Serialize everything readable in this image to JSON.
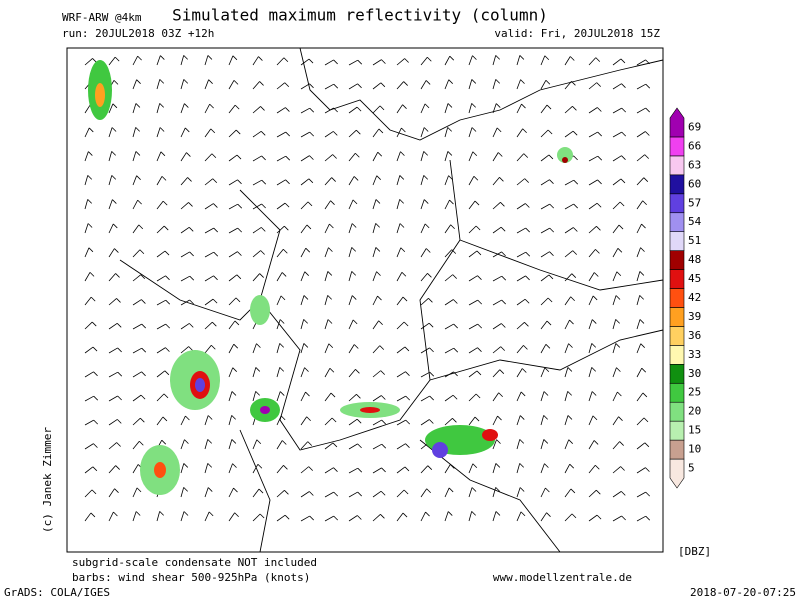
{
  "header": {
    "model": "WRF-ARW @4km",
    "title": "Simulated maximum reflectivity (column)",
    "run": "run: 20JUL2018 03Z +12h",
    "valid": "valid: Fri, 20JUL2018 15Z"
  },
  "copyright": "(c) Janek Zimmer",
  "colorbar": {
    "unit": "[DBZ]",
    "levels": [
      {
        "value": 5,
        "color": "#f8e8e0"
      },
      {
        "value": 10,
        "color": "#c8a090"
      },
      {
        "value": 15,
        "color": "#b8f0b0"
      },
      {
        "value": 20,
        "color": "#80e080"
      },
      {
        "value": 25,
        "color": "#40c840"
      },
      {
        "value": 30,
        "color": "#109010"
      },
      {
        "value": 33,
        "color": "#fff8b0"
      },
      {
        "value": 36,
        "color": "#ffd060"
      },
      {
        "value": 39,
        "color": "#ffa020"
      },
      {
        "value": 42,
        "color": "#ff5010"
      },
      {
        "value": 45,
        "color": "#e01010"
      },
      {
        "value": 48,
        "color": "#a00000"
      },
      {
        "value": 51,
        "color": "#e0d8f8"
      },
      {
        "value": 54,
        "color": "#a090f0"
      },
      {
        "value": 57,
        "color": "#6040e0"
      },
      {
        "value": 60,
        "color": "#2010a0"
      },
      {
        "value": 63,
        "color": "#f8c8f0"
      },
      {
        "value": 66,
        "color": "#f040f0"
      },
      {
        "value": 69,
        "color": "#a000b0"
      }
    ]
  },
  "footer": {
    "note1": "subgrid-scale condensate NOT included",
    "note2": "barbs: wind shear 500-925hPa (knots)",
    "website": "www.modellzentrale.de",
    "software": "GrADS: COLA/IGES",
    "timestamp": "2018-07-20-07:25"
  }
}
